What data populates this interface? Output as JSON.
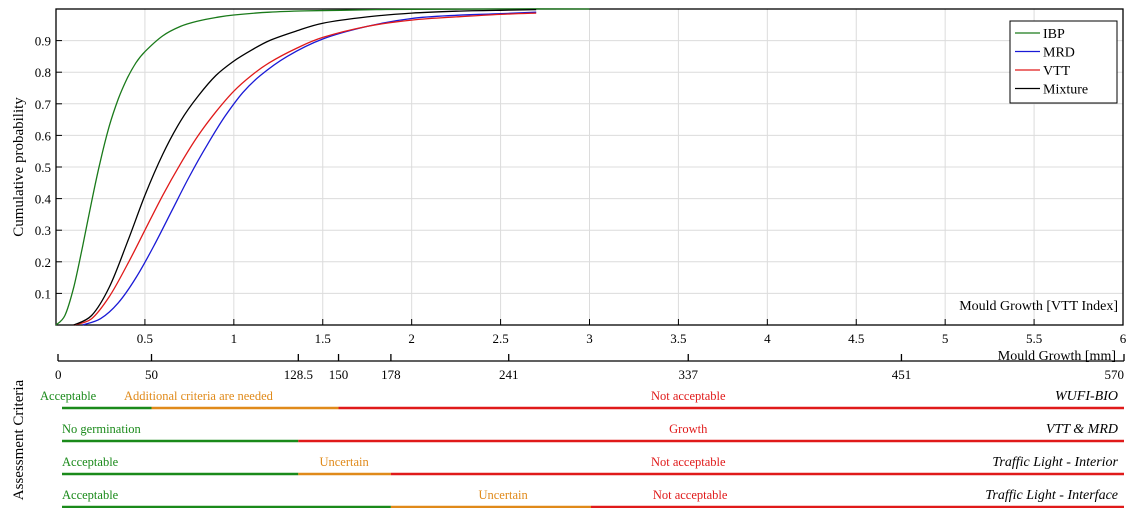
{
  "chart_data": {
    "type": "line",
    "title": "",
    "xlabel": "Mould Growth [VTT Index]",
    "ylabel": "Cumulative probability",
    "xlim": [
      0,
      6
    ],
    "ylim": [
      0,
      1
    ],
    "grid": true,
    "legend_position": "top-right",
    "x_ticks": [
      "0.5",
      "1",
      "1.5",
      "2",
      "2.5",
      "3",
      "3.5",
      "4",
      "4.5",
      "5",
      "5.5",
      "6"
    ],
    "y_ticks": [
      "0.1",
      "0.2",
      "0.3",
      "0.4",
      "0.5",
      "0.6",
      "0.7",
      "0.8",
      "0.9"
    ],
    "series": [
      {
        "name": "IBP",
        "color": "#1a7a1a",
        "x": [
          0,
          0.05,
          0.1,
          0.15,
          0.2,
          0.25,
          0.3,
          0.35,
          0.4,
          0.45,
          0.5,
          0.6,
          0.7,
          0.8,
          0.9,
          1.0,
          1.2,
          1.4,
          1.6,
          1.8,
          2.0,
          2.5,
          3.0
        ],
        "values": [
          0.0,
          0.03,
          0.12,
          0.25,
          0.39,
          0.52,
          0.63,
          0.715,
          0.78,
          0.83,
          0.865,
          0.915,
          0.945,
          0.962,
          0.973,
          0.981,
          0.99,
          0.994,
          0.996,
          0.998,
          0.999,
          1.0,
          1.0
        ]
      },
      {
        "name": "MRD",
        "color": "#1a1ad6",
        "x": [
          0.15,
          0.25,
          0.35,
          0.45,
          0.55,
          0.65,
          0.75,
          0.85,
          0.95,
          1.05,
          1.15,
          1.3,
          1.5,
          1.75,
          2.0,
          2.25,
          2.5,
          2.7
        ],
        "values": [
          0.0,
          0.02,
          0.07,
          0.15,
          0.25,
          0.36,
          0.47,
          0.57,
          0.66,
          0.735,
          0.79,
          0.85,
          0.905,
          0.945,
          0.97,
          0.98,
          0.985,
          0.99
        ]
      },
      {
        "name": "VTT",
        "color": "#e01a1a",
        "x": [
          0.1,
          0.2,
          0.3,
          0.4,
          0.5,
          0.6,
          0.7,
          0.8,
          0.9,
          1.0,
          1.1,
          1.2,
          1.35,
          1.5,
          1.75,
          2.0,
          2.25,
          2.5,
          2.7
        ],
        "values": [
          0.0,
          0.02,
          0.09,
          0.19,
          0.3,
          0.41,
          0.51,
          0.6,
          0.675,
          0.74,
          0.79,
          0.83,
          0.875,
          0.91,
          0.945,
          0.965,
          0.975,
          0.983,
          0.987
        ]
      },
      {
        "name": "Mixture",
        "color": "#000000",
        "x": [
          0.1,
          0.2,
          0.3,
          0.4,
          0.5,
          0.6,
          0.7,
          0.8,
          0.9,
          1.0,
          1.1,
          1.2,
          1.35,
          1.5,
          1.75,
          2.0,
          2.25,
          2.5,
          2.7
        ],
        "values": [
          0.0,
          0.03,
          0.12,
          0.26,
          0.41,
          0.54,
          0.645,
          0.725,
          0.79,
          0.835,
          0.87,
          0.9,
          0.93,
          0.955,
          0.975,
          0.987,
          0.993,
          0.996,
          0.998
        ]
      }
    ]
  },
  "secondary_axis": {
    "label": "Mould Growth [mm]",
    "max": 570,
    "ticks": [
      {
        "v": 0,
        "t": "0"
      },
      {
        "v": 50,
        "t": "50"
      },
      {
        "v": 128.5,
        "t": "128.5"
      },
      {
        "v": 150,
        "t": "150"
      },
      {
        "v": 178,
        "t": "178"
      },
      {
        "v": 241,
        "t": "241"
      },
      {
        "v": 337,
        "t": "337"
      },
      {
        "v": 451,
        "t": "451"
      },
      {
        "v": 570,
        "t": "570"
      }
    ]
  },
  "assessment": {
    "title": "Assessment Criteria",
    "colors": {
      "green": "#1a8a1a",
      "orange": "#e08a1a",
      "red": "#e01a1a"
    },
    "rows": [
      {
        "name": "WUFI-BIO",
        "segments": [
          {
            "from": 0,
            "to": 50,
            "color": "green"
          },
          {
            "from": 50,
            "to": 150,
            "color": "orange"
          },
          {
            "from": 150,
            "to": 570,
            "color": "red"
          }
        ],
        "labels": [
          {
            "text": "Acceptable",
            "at": 25,
            "color": "green"
          },
          {
            "text": "Additional criteria are needed",
            "at": 100,
            "color": "orange"
          },
          {
            "text": "Not acceptable",
            "at": 337,
            "color": "red"
          }
        ]
      },
      {
        "name": "VTT & MRD",
        "segments": [
          {
            "from": 0,
            "to": 128.5,
            "color": "green"
          },
          {
            "from": 128.5,
            "to": 570,
            "color": "red"
          }
        ],
        "labels": [
          {
            "text": "No germination",
            "at": 40,
            "color": "green"
          },
          {
            "text": "Growth",
            "at": 337,
            "color": "red"
          }
        ]
      },
      {
        "name": "Traffic Light - Interior",
        "segments": [
          {
            "from": 0,
            "to": 128.5,
            "color": "green"
          },
          {
            "from": 128.5,
            "to": 178,
            "color": "orange"
          },
          {
            "from": 178,
            "to": 570,
            "color": "red"
          }
        ],
        "labels": [
          {
            "text": "Acceptable",
            "at": 30,
            "color": "green"
          },
          {
            "text": "Uncertain",
            "at": 153,
            "color": "orange"
          },
          {
            "text": "Not acceptable",
            "at": 337,
            "color": "red"
          }
        ]
      },
      {
        "name": "Traffic Light - Interface",
        "segments": [
          {
            "from": 0,
            "to": 178,
            "color": "green"
          },
          {
            "from": 178,
            "to": 285,
            "color": "orange"
          },
          {
            "from": 285,
            "to": 570,
            "color": "red"
          }
        ],
        "labels": [
          {
            "text": "Acceptable",
            "at": 30,
            "color": "green"
          },
          {
            "text": "Uncertain",
            "at": 238,
            "color": "orange"
          },
          {
            "text": "Not acceptable",
            "at": 338,
            "color": "red"
          }
        ]
      }
    ]
  }
}
